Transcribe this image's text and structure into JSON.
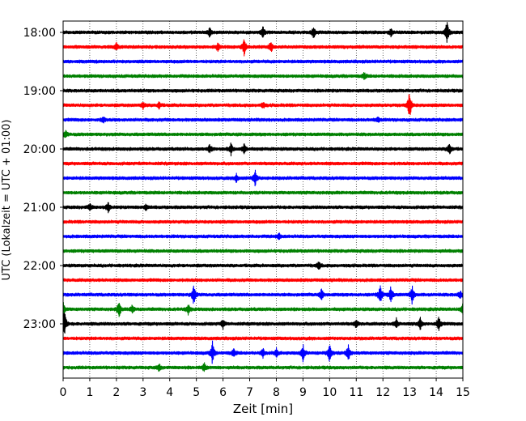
{
  "chart_data": {
    "type": "line",
    "title": "",
    "xlabel": "Zeit  [min]",
    "ylabel": "UTC (Lokalzeit = UTC + 01:00)",
    "xlim": [
      0,
      15
    ],
    "x_ticks": [
      "0",
      "1",
      "2",
      "3",
      "4",
      "5",
      "6",
      "7",
      "8",
      "9",
      "10",
      "11",
      "12",
      "13",
      "14",
      "15"
    ],
    "y_ticks": [
      {
        "label": "18:00",
        "row": 0
      },
      {
        "label": "19:00",
        "row": 4
      },
      {
        "label": "20:00",
        "row": 8
      },
      {
        "label": "21:00",
        "row": 12
      },
      {
        "label": "22:00",
        "row": 16
      },
      {
        "label": "23:00",
        "row": 20
      }
    ],
    "grid": "vertical-dotted",
    "trace_colors": [
      "#000000",
      "#ff0000",
      "#0000ff",
      "#008000"
    ],
    "traces": [
      {
        "start": "18:00",
        "events": [
          [
            5.5,
            0.35
          ],
          [
            7.5,
            0.4
          ],
          [
            9.4,
            0.45
          ],
          [
            14.4,
            0.9
          ],
          [
            12.3,
            0.25
          ]
        ]
      },
      {
        "start": "18:15",
        "events": [
          [
            2.0,
            0.3
          ],
          [
            5.8,
            0.3
          ],
          [
            6.8,
            0.65
          ],
          [
            7.8,
            0.4
          ]
        ]
      },
      {
        "start": "18:30",
        "events": []
      },
      {
        "start": "18:45",
        "events": [
          [
            11.3,
            0.25
          ]
        ]
      },
      {
        "start": "19:00",
        "events": []
      },
      {
        "start": "19:15",
        "events": [
          [
            3.0,
            0.25
          ],
          [
            3.6,
            0.25
          ],
          [
            7.5,
            0.2
          ],
          [
            13.0,
            1.1
          ]
        ]
      },
      {
        "start": "19:30",
        "events": [
          [
            1.5,
            0.25
          ],
          [
            11.8,
            0.2
          ]
        ]
      },
      {
        "start": "19:45",
        "events": [
          [
            0.1,
            0.3
          ]
        ]
      },
      {
        "start": "20:00",
        "events": [
          [
            5.5,
            0.3
          ],
          [
            6.3,
            0.4
          ],
          [
            6.8,
            0.4
          ],
          [
            14.5,
            0.5
          ]
        ]
      },
      {
        "start": "20:15",
        "events": []
      },
      {
        "start": "20:30",
        "events": [
          [
            6.5,
            0.3
          ],
          [
            7.2,
            0.6
          ]
        ]
      },
      {
        "start": "20:45",
        "events": []
      },
      {
        "start": "21:00",
        "events": [
          [
            1.0,
            0.25
          ],
          [
            1.7,
            0.35
          ],
          [
            3.1,
            0.2
          ]
        ]
      },
      {
        "start": "21:15",
        "events": []
      },
      {
        "start": "21:30",
        "events": [
          [
            8.1,
            0.2
          ]
        ]
      },
      {
        "start": "21:45",
        "events": []
      },
      {
        "start": "22:00",
        "events": [
          [
            9.6,
            0.3
          ]
        ]
      },
      {
        "start": "22:15",
        "events": []
      },
      {
        "start": "22:30",
        "events": [
          [
            4.9,
            0.75
          ],
          [
            9.7,
            0.4
          ],
          [
            11.9,
            0.75
          ],
          [
            12.3,
            0.6
          ],
          [
            13.1,
            0.65
          ],
          [
            14.9,
            0.3
          ]
        ]
      },
      {
        "start": "22:45",
        "events": [
          [
            0.0,
            0.5
          ],
          [
            2.1,
            0.55
          ],
          [
            2.6,
            0.3
          ],
          [
            4.7,
            0.35
          ],
          [
            15.0,
            0.45
          ]
        ]
      },
      {
        "start": "23:00",
        "events": [
          [
            0.05,
            0.95
          ],
          [
            6.0,
            0.3
          ],
          [
            11.0,
            0.3
          ],
          [
            12.5,
            0.35
          ],
          [
            13.4,
            0.4
          ],
          [
            14.1,
            0.55
          ]
        ]
      },
      {
        "start": "23:15",
        "events": []
      },
      {
        "start": "23:30",
        "events": [
          [
            5.6,
            0.8
          ],
          [
            6.4,
            0.3
          ],
          [
            7.5,
            0.3
          ],
          [
            8.0,
            0.3
          ],
          [
            9.0,
            0.6
          ],
          [
            10.0,
            0.75
          ],
          [
            10.7,
            0.65
          ]
        ]
      },
      {
        "start": "23:45",
        "events": [
          [
            3.6,
            0.25
          ],
          [
            5.3,
            0.3
          ]
        ]
      }
    ]
  }
}
